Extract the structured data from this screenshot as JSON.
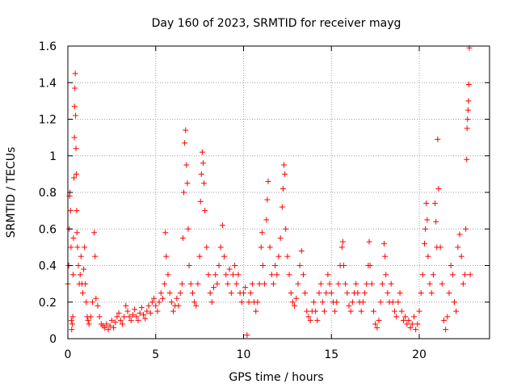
{
  "chart_data": {
    "type": "scatter",
    "title": "Day 160 of 2023, SRMTID for receiver mayg",
    "xlabel": "GPS time / hours",
    "ylabel": "SRMTID / TECUs",
    "xlim": [
      0,
      24
    ],
    "ylim": [
      0,
      1.6
    ],
    "xticks": [
      0,
      5,
      10,
      15,
      20
    ],
    "yticks": [
      0,
      0.2,
      0.4,
      0.6,
      0.8,
      1,
      1.2,
      1.4,
      1.6
    ],
    "xtick_labels": [
      "0",
      "5",
      "10",
      "15",
      "20"
    ],
    "ytick_labels": [
      "0",
      "0.2",
      "0.4",
      "0.6",
      "0.8",
      "1",
      "1.2",
      "1.4",
      "1.6"
    ],
    "grid": true,
    "marker": "+",
    "color": "#ff0000",
    "series": [
      {
        "name": "SRMTID",
        "points": [
          [
            0.0,
            0.3
          ],
          [
            0.05,
            0.4
          ],
          [
            0.08,
            0.6
          ],
          [
            0.1,
            0.78
          ],
          [
            0.12,
            0.8
          ],
          [
            0.15,
            0.7
          ],
          [
            0.18,
            0.5
          ],
          [
            0.2,
            0.1
          ],
          [
            0.22,
            0.05
          ],
          [
            0.25,
            0.08
          ],
          [
            0.28,
            0.12
          ],
          [
            0.3,
            0.35
          ],
          [
            0.32,
            0.55
          ],
          [
            0.35,
            0.88
          ],
          [
            0.37,
            1.1
          ],
          [
            0.38,
            1.27
          ],
          [
            0.4,
            1.37
          ],
          [
            0.42,
            1.45
          ],
          [
            0.44,
            1.22
          ],
          [
            0.46,
            1.04
          ],
          [
            0.48,
            0.9
          ],
          [
            0.5,
            0.7
          ],
          [
            0.52,
            0.58
          ],
          [
            0.55,
            0.5
          ],
          [
            0.6,
            0.4
          ],
          [
            0.65,
            0.3
          ],
          [
            0.7,
            0.35
          ],
          [
            0.75,
            0.45
          ],
          [
            0.8,
            0.3
          ],
          [
            0.85,
            0.25
          ],
          [
            0.9,
            0.38
          ],
          [
            0.95,
            0.5
          ],
          [
            1.0,
            0.3
          ],
          [
            1.05,
            0.2
          ],
          [
            1.1,
            0.12
          ],
          [
            1.15,
            0.1
          ],
          [
            1.2,
            0.08
          ],
          [
            1.3,
            0.12
          ],
          [
            1.4,
            0.2
          ],
          [
            1.5,
            0.58
          ],
          [
            1.55,
            0.45
          ],
          [
            1.6,
            0.22
          ],
          [
            1.7,
            0.18
          ],
          [
            1.8,
            0.12
          ],
          [
            1.9,
            0.08
          ],
          [
            2.0,
            0.07
          ],
          [
            2.1,
            0.06
          ],
          [
            2.2,
            0.08
          ],
          [
            2.3,
            0.05
          ],
          [
            2.4,
            0.07
          ],
          [
            2.5,
            0.1
          ],
          [
            2.6,
            0.06
          ],
          [
            2.7,
            0.09
          ],
          [
            2.8,
            0.12
          ],
          [
            2.9,
            0.14
          ],
          [
            3.0,
            0.1
          ],
          [
            3.1,
            0.08
          ],
          [
            3.2,
            0.12
          ],
          [
            3.3,
            0.18
          ],
          [
            3.4,
            0.15
          ],
          [
            3.5,
            0.12
          ],
          [
            3.6,
            0.1
          ],
          [
            3.7,
            0.13
          ],
          [
            3.8,
            0.16
          ],
          [
            3.9,
            0.12
          ],
          [
            4.0,
            0.1
          ],
          [
            4.1,
            0.14
          ],
          [
            4.2,
            0.17
          ],
          [
            4.3,
            0.13
          ],
          [
            4.4,
            0.11
          ],
          [
            4.5,
            0.15
          ],
          [
            4.6,
            0.18
          ],
          [
            4.7,
            0.14
          ],
          [
            4.8,
            0.2
          ],
          [
            4.9,
            0.22
          ],
          [
            5.0,
            0.18
          ],
          [
            5.1,
            0.15
          ],
          [
            5.2,
            0.2
          ],
          [
            5.3,
            0.25
          ],
          [
            5.4,
            0.22
          ],
          [
            5.5,
            0.3
          ],
          [
            5.55,
            0.58
          ],
          [
            5.6,
            0.45
          ],
          [
            5.7,
            0.35
          ],
          [
            5.8,
            0.25
          ],
          [
            5.9,
            0.2
          ],
          [
            6.0,
            0.15
          ],
          [
            6.1,
            0.18
          ],
          [
            6.2,
            0.22
          ],
          [
            6.3,
            0.18
          ],
          [
            6.4,
            0.25
          ],
          [
            6.5,
            0.3
          ],
          [
            6.55,
            0.55
          ],
          [
            6.6,
            0.8
          ],
          [
            6.65,
            1.07
          ],
          [
            6.7,
            1.14
          ],
          [
            6.75,
            0.95
          ],
          [
            6.8,
            0.85
          ],
          [
            6.85,
            0.6
          ],
          [
            6.9,
            0.4
          ],
          [
            7.0,
            0.3
          ],
          [
            7.1,
            0.25
          ],
          [
            7.2,
            0.2
          ],
          [
            7.3,
            0.18
          ],
          [
            7.4,
            0.3
          ],
          [
            7.5,
            0.45
          ],
          [
            7.55,
            0.75
          ],
          [
            7.6,
            0.9
          ],
          [
            7.65,
            1.02
          ],
          [
            7.7,
            0.96
          ],
          [
            7.75,
            0.85
          ],
          [
            7.8,
            0.7
          ],
          [
            7.9,
            0.5
          ],
          [
            8.0,
            0.35
          ],
          [
            8.1,
            0.25
          ],
          [
            8.2,
            0.2
          ],
          [
            8.3,
            0.28
          ],
          [
            8.4,
            0.35
          ],
          [
            8.5,
            0.3
          ],
          [
            8.6,
            0.4
          ],
          [
            8.7,
            0.5
          ],
          [
            8.8,
            0.62
          ],
          [
            8.9,
            0.45
          ],
          [
            9.0,
            0.35
          ],
          [
            9.1,
            0.3
          ],
          [
            9.2,
            0.38
          ],
          [
            9.3,
            0.25
          ],
          [
            9.4,
            0.35
          ],
          [
            9.5,
            0.4
          ],
          [
            9.6,
            0.3
          ],
          [
            9.7,
            0.35
          ],
          [
            9.8,
            0.25
          ],
          [
            9.9,
            0.2
          ],
          [
            10.0,
            0.25
          ],
          [
            10.1,
            0.28
          ],
          [
            10.2,
            0.02
          ],
          [
            10.3,
            0.2
          ],
          [
            10.4,
            0.25
          ],
          [
            10.5,
            0.3
          ],
          [
            10.6,
            0.2
          ],
          [
            10.7,
            0.15
          ],
          [
            10.8,
            0.2
          ],
          [
            10.9,
            0.3
          ],
          [
            11.0,
            0.5
          ],
          [
            11.05,
            0.58
          ],
          [
            11.1,
            0.4
          ],
          [
            11.2,
            0.3
          ],
          [
            11.3,
            0.65
          ],
          [
            11.35,
            0.76
          ],
          [
            11.4,
            0.86
          ],
          [
            11.5,
            0.5
          ],
          [
            11.6,
            0.35
          ],
          [
            11.7,
            0.3
          ],
          [
            11.8,
            0.4
          ],
          [
            11.9,
            0.35
          ],
          [
            12.0,
            0.45
          ],
          [
            12.1,
            0.55
          ],
          [
            12.2,
            0.72
          ],
          [
            12.25,
            0.82
          ],
          [
            12.3,
            0.95
          ],
          [
            12.35,
            0.9
          ],
          [
            12.4,
            0.6
          ],
          [
            12.5,
            0.45
          ],
          [
            12.6,
            0.35
          ],
          [
            12.7,
            0.25
          ],
          [
            12.8,
            0.2
          ],
          [
            12.9,
            0.18
          ],
          [
            13.0,
            0.22
          ],
          [
            13.1,
            0.3
          ],
          [
            13.2,
            0.4
          ],
          [
            13.3,
            0.48
          ],
          [
            13.4,
            0.35
          ],
          [
            13.5,
            0.25
          ],
          [
            13.6,
            0.15
          ],
          [
            13.7,
            0.12
          ],
          [
            13.8,
            0.1
          ],
          [
            13.9,
            0.15
          ],
          [
            14.0,
            0.2
          ],
          [
            14.1,
            0.15
          ],
          [
            14.2,
            0.1
          ],
          [
            14.3,
            0.25
          ],
          [
            14.4,
            0.3
          ],
          [
            14.5,
            0.2
          ],
          [
            14.6,
            0.15
          ],
          [
            14.7,
            0.25
          ],
          [
            14.8,
            0.35
          ],
          [
            14.9,
            0.3
          ],
          [
            15.0,
            0.25
          ],
          [
            15.1,
            0.2
          ],
          [
            15.2,
            0.15
          ],
          [
            15.3,
            0.2
          ],
          [
            15.4,
            0.3
          ],
          [
            15.5,
            0.4
          ],
          [
            15.6,
            0.5
          ],
          [
            15.65,
            0.53
          ],
          [
            15.7,
            0.4
          ],
          [
            15.8,
            0.3
          ],
          [
            15.9,
            0.25
          ],
          [
            16.0,
            0.18
          ],
          [
            16.1,
            0.15
          ],
          [
            16.2,
            0.2
          ],
          [
            16.3,
            0.25
          ],
          [
            16.4,
            0.3
          ],
          [
            16.5,
            0.25
          ],
          [
            16.6,
            0.2
          ],
          [
            16.7,
            0.15
          ],
          [
            16.8,
            0.2
          ],
          [
            16.9,
            0.25
          ],
          [
            17.0,
            0.3
          ],
          [
            17.1,
            0.4
          ],
          [
            17.15,
            0.53
          ],
          [
            17.2,
            0.4
          ],
          [
            17.3,
            0.3
          ],
          [
            17.4,
            0.15
          ],
          [
            17.5,
            0.08
          ],
          [
            17.6,
            0.06
          ],
          [
            17.7,
            0.1
          ],
          [
            17.8,
            0.2
          ],
          [
            17.9,
            0.3
          ],
          [
            18.0,
            0.52
          ],
          [
            18.05,
            0.45
          ],
          [
            18.1,
            0.35
          ],
          [
            18.2,
            0.25
          ],
          [
            18.3,
            0.2
          ],
          [
            18.4,
            0.3
          ],
          [
            18.5,
            0.2
          ],
          [
            18.6,
            0.15
          ],
          [
            18.7,
            0.12
          ],
          [
            18.8,
            0.2
          ],
          [
            18.9,
            0.25
          ],
          [
            19.0,
            0.15
          ],
          [
            19.1,
            0.1
          ],
          [
            19.2,
            0.12
          ],
          [
            19.3,
            0.08
          ],
          [
            19.4,
            0.1
          ],
          [
            19.5,
            0.06
          ],
          [
            19.6,
            0.08
          ],
          [
            19.7,
            0.12
          ],
          [
            19.8,
            0.05
          ],
          [
            19.9,
            0.08
          ],
          [
            20.0,
            0.15
          ],
          [
            20.1,
            0.25
          ],
          [
            20.2,
            0.35
          ],
          [
            20.3,
            0.52
          ],
          [
            20.35,
            0.6
          ],
          [
            20.4,
            0.74
          ],
          [
            20.45,
            0.65
          ],
          [
            20.5,
            0.45
          ],
          [
            20.6,
            0.3
          ],
          [
            20.7,
            0.25
          ],
          [
            20.8,
            0.35
          ],
          [
            20.9,
            0.74
          ],
          [
            20.95,
            0.64
          ],
          [
            21.0,
            0.5
          ],
          [
            21.05,
            1.09
          ],
          [
            21.1,
            0.82
          ],
          [
            21.2,
            0.5
          ],
          [
            21.3,
            0.3
          ],
          [
            21.4,
            0.1
          ],
          [
            21.5,
            0.05
          ],
          [
            21.6,
            0.12
          ],
          [
            21.7,
            0.25
          ],
          [
            21.8,
            0.4
          ],
          [
            21.9,
            0.35
          ],
          [
            22.0,
            0.2
          ],
          [
            22.1,
            0.15
          ],
          [
            22.2,
            0.5
          ],
          [
            22.3,
            0.57
          ],
          [
            22.4,
            0.45
          ],
          [
            22.5,
            0.3
          ],
          [
            22.6,
            0.35
          ],
          [
            22.65,
            0.6
          ],
          [
            22.7,
            0.98
          ],
          [
            22.72,
            1.15
          ],
          [
            22.75,
            1.2
          ],
          [
            22.78,
            1.25
          ],
          [
            22.8,
            1.3
          ],
          [
            22.82,
            1.39
          ],
          [
            22.85,
            1.59
          ],
          [
            22.9,
            0.35
          ]
        ]
      }
    ]
  }
}
